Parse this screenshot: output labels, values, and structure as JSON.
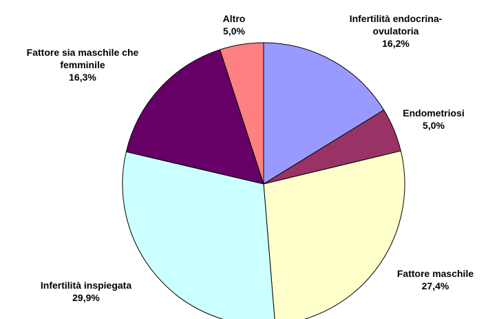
{
  "chart_data": {
    "type": "pie",
    "categories": [
      "Infertilità endocrina-ovulatoria",
      "Endometriosi",
      "Fattore maschile",
      "Infertilità inspiegata",
      "Fattore sia maschile che femminile",
      "Altro"
    ],
    "values": [
      16.2,
      5.0,
      27.4,
      29.9,
      16.3,
      5.0
    ],
    "value_labels": [
      "16,2%",
      "5,0%",
      "27,4%",
      "29,9%",
      "16,3%",
      "5,0%"
    ],
    "colors": [
      "#9999ff",
      "#993366",
      "#ffffcc",
      "#ccffff",
      "#660066",
      "#ff8080"
    ]
  }
}
